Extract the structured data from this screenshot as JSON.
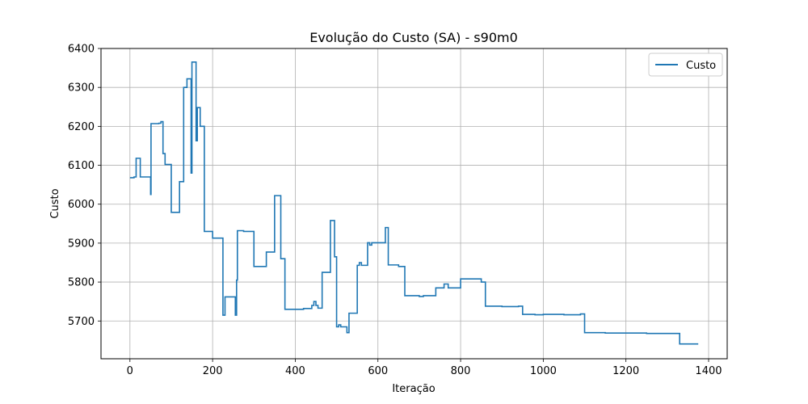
{
  "chart_data": {
    "type": "line",
    "title": "Evolução do Custo (SA) - s90m0",
    "xlabel": "Iteração",
    "ylabel": "Custo",
    "xlim": [
      -70,
      1445
    ],
    "ylim": [
      5603,
      6400
    ],
    "xticks": [
      0,
      200,
      400,
      600,
      800,
      1000,
      1200,
      1400
    ],
    "yticks": [
      5700,
      5800,
      5900,
      6000,
      6100,
      6200,
      6300,
      6400
    ],
    "grid": true,
    "legend": {
      "position": "top-right"
    },
    "colors": {
      "line": "#1f77b4",
      "grid": "#b0b0b0",
      "axes": "#000000"
    },
    "series": [
      {
        "name": "Custo",
        "step": "post",
        "x": [
          0,
          10,
          15,
          25,
          50,
          51,
          52,
          70,
          75,
          80,
          85,
          100,
          120,
          130,
          138,
          148,
          150,
          152,
          160,
          163,
          165,
          170,
          180,
          185,
          200,
          225,
          230,
          250,
          255,
          258,
          260,
          265,
          275,
          300,
          330,
          350,
          365,
          375,
          400,
          420,
          440,
          445,
          450,
          455,
          465,
          475,
          485,
          495,
          500,
          505,
          510,
          515,
          525,
          530,
          545,
          550,
          555,
          560,
          575,
          580,
          585,
          595,
          618,
          625,
          650,
          665,
          700,
          710,
          740,
          760,
          770,
          800,
          840,
          850,
          860,
          900,
          940,
          950,
          980,
          1000,
          1050,
          1090,
          1100,
          1150,
          1200,
          1250,
          1300,
          1330,
          1375
        ],
        "y": [
          6068,
          6070,
          6118,
          6070,
          6025,
          6207,
          6207,
          6208,
          6212,
          6130,
          6102,
          5979,
          6058,
          6300,
          6322,
          6080,
          6365,
          6365,
          6163,
          6248,
          6248,
          6200,
          5930,
          5930,
          5913,
          5715,
          5762,
          5762,
          5715,
          5805,
          5932,
          5932,
          5930,
          5840,
          5877,
          6022,
          5860,
          5730,
          5730,
          5732,
          5740,
          5750,
          5740,
          5733,
          5825,
          5825,
          5958,
          5865,
          5685,
          5690,
          5685,
          5685,
          5670,
          5720,
          5720,
          5843,
          5850,
          5843,
          5901,
          5895,
          5901,
          5901,
          5940,
          5844,
          5840,
          5765,
          5763,
          5765,
          5785,
          5795,
          5785,
          5808,
          5808,
          5800,
          5738,
          5737,
          5738,
          5717,
          5716,
          5717,
          5716,
          5718,
          5670,
          5669,
          5669,
          5668,
          5668,
          5641,
          5641
        ]
      }
    ]
  }
}
